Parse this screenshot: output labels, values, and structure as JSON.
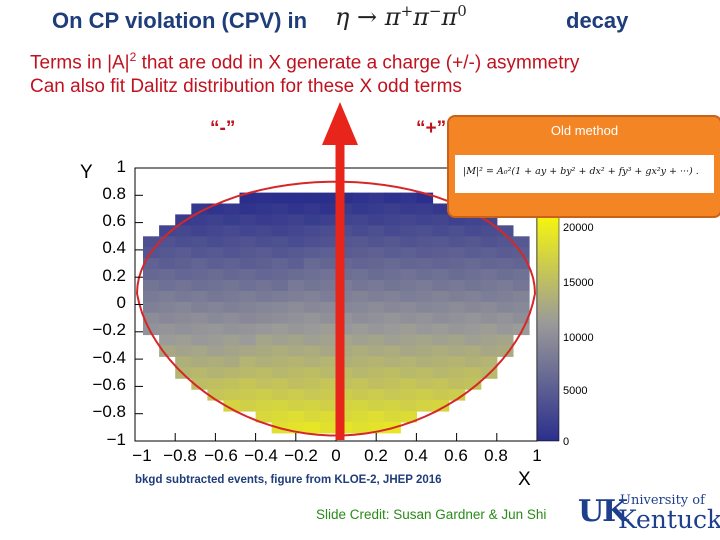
{
  "slide": {
    "title": "On CP violation (CPV) in",
    "title_eq": {
      "eta": "η",
      "arrow": "→",
      "pi": "π",
      "plus": "+",
      "minus": "−",
      "zero": "0"
    },
    "title_end": "decay",
    "line1": {
      "before": "Terms in |A|",
      "sup": "2",
      "after": " that are odd in X generate a charge (+/-) asymmetry"
    },
    "line2": "Can also fit Dalitz distribution for these X odd terms",
    "minus_region": "“-”",
    "plus_region": "“+”",
    "caption": "bkgd subtracted events, figure from KLOE-2, JHEP 2016",
    "credit": "Slide Credit: Susan Gardner & Jun Shi"
  },
  "callout": {
    "title": "Old method",
    "equation": "|M|² = A₀²(1 + ay + by² + dx² + fy³ + gx²y + ···) ."
  },
  "logo": {
    "mark": "UK",
    "university": "University of",
    "name": "Kentucky."
  },
  "colors": {
    "title": "#1f3d7a",
    "red_text": "#c1121f",
    "credit": "#2a8a1a",
    "callout": "#f48524",
    "boundary": "#d62728",
    "arrow": "#e8251b",
    "low": "#2b2f8c",
    "mid": "#9a9a9a",
    "high": "#ffff00"
  },
  "chart_data": {
    "type": "heatmap",
    "title": "",
    "xlabel": "X",
    "ylabel": "Y",
    "xlim": [
      -1,
      1
    ],
    "ylim": [
      -1,
      1
    ],
    "x_ticks": [
      "−1",
      "−0.8",
      "−0.6",
      "−0.4",
      "−0.2",
      "0",
      "0.2",
      "0.4",
      "0.6",
      "0.8",
      "1"
    ],
    "y_ticks": [
      "1",
      "0.8",
      "0.6",
      "0.4",
      "0.2",
      "0",
      "−0.2",
      "−0.4",
      "−0.6",
      "−0.8",
      "−1"
    ],
    "colorbar": {
      "min": 0,
      "max": 25000,
      "ticks": [
        "20000",
        "15000",
        "10000",
        "5000",
        "0"
      ]
    },
    "rows_y_centers": [
      0.78,
      0.7,
      0.62,
      0.54,
      0.46,
      0.38,
      0.3,
      0.22,
      0.14,
      0.06,
      -0.02,
      -0.1,
      -0.18,
      -0.26,
      -0.34,
      -0.42,
      -0.5,
      -0.58,
      -0.66,
      -0.74,
      -0.82,
      -0.9
    ],
    "rows_x_halfwidth": [
      0.5,
      0.72,
      0.82,
      0.88,
      0.92,
      0.94,
      0.96,
      0.96,
      0.96,
      0.96,
      0.95,
      0.94,
      0.92,
      0.89,
      0.86,
      0.82,
      0.77,
      0.71,
      0.63,
      0.54,
      0.43,
      0.28
    ],
    "rows_counts": [
      500,
      1500,
      2500,
      3500,
      4500,
      5500,
      6500,
      7500,
      8500,
      9500,
      10500,
      11500,
      12500,
      13500,
      14500,
      15500,
      16500,
      17500,
      18500,
      19500,
      20500,
      21500
    ],
    "boundary": "Dalitz-plot kinematic boundary (red curve)",
    "arrow": "upward red arrow at X = 0"
  }
}
